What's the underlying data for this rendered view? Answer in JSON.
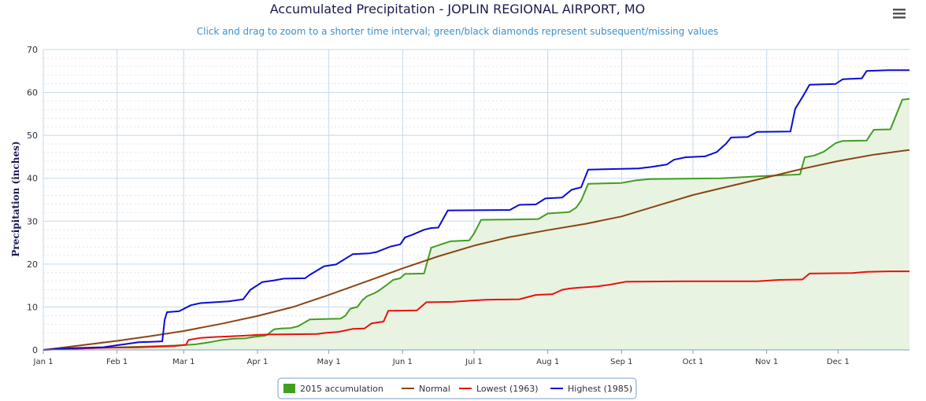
{
  "menu_icon": "hamburger-menu-icon",
  "chart_data": {
    "type": "line",
    "title": "Accumulated Precipitation - JOPLIN REGIONAL AIRPORT, MO",
    "subtitle": "Click and drag to zoom to a shorter time interval; green/black diamonds represent subsequent/missing values",
    "ylabel": "Precipitation (inches)",
    "xlabel": "",
    "ylim": [
      0,
      70
    ],
    "yticks": [
      0,
      10,
      20,
      30,
      40,
      50,
      60,
      70
    ],
    "x_domain_days": [
      0,
      364
    ],
    "xticks": [
      {
        "day": 0,
        "label": "Jan 1"
      },
      {
        "day": 31,
        "label": "Feb 1"
      },
      {
        "day": 59,
        "label": "Mar 1"
      },
      {
        "day": 90,
        "label": "Apr 1"
      },
      {
        "day": 120,
        "label": "May 1"
      },
      {
        "day": 151,
        "label": "Jun 1"
      },
      {
        "day": 181,
        "label": "Jul 1"
      },
      {
        "day": 212,
        "label": "Aug 1"
      },
      {
        "day": 243,
        "label": "Sep 1"
      },
      {
        "day": 273,
        "label": "Oct 1"
      },
      {
        "day": 304,
        "label": "Nov 1"
      },
      {
        "day": 334,
        "label": "Dec 1"
      }
    ],
    "grid": true,
    "legend_position": "bottom-center",
    "series": [
      {
        "name": "2015 accumulation",
        "color": "#3f9f1f",
        "fill": "#e8f3e2",
        "step": true,
        "points": [
          [
            0,
            0
          ],
          [
            12,
            0.3
          ],
          [
            25,
            0.5
          ],
          [
            31,
            0.6
          ],
          [
            44,
            0.8
          ],
          [
            55,
            1.0
          ],
          [
            58,
            1.1
          ],
          [
            61,
            1.2
          ],
          [
            64,
            1.3
          ],
          [
            70,
            1.8
          ],
          [
            75,
            2.3
          ],
          [
            80,
            2.6
          ],
          [
            85,
            2.7
          ],
          [
            88,
            3.0
          ],
          [
            93,
            3.3
          ],
          [
            94,
            3.5
          ],
          [
            97,
            4.8
          ],
          [
            100,
            5.0
          ],
          [
            104,
            5.1
          ],
          [
            107,
            5.5
          ],
          [
            112,
            7.1
          ],
          [
            118,
            7.2
          ],
          [
            125,
            7.3
          ],
          [
            127,
            8.0
          ],
          [
            129,
            9.6
          ],
          [
            132,
            10.0
          ],
          [
            134,
            11.5
          ],
          [
            136,
            12.5
          ],
          [
            139,
            13.2
          ],
          [
            141,
            13.8
          ],
          [
            144,
            15.0
          ],
          [
            147,
            16.3
          ],
          [
            150,
            16.7
          ],
          [
            152,
            17.7
          ],
          [
            160,
            17.8
          ],
          [
            163,
            23.8
          ],
          [
            171,
            25.3
          ],
          [
            179,
            25.5
          ],
          [
            181,
            27.1
          ],
          [
            184,
            30.3
          ],
          [
            198,
            30.4
          ],
          [
            208,
            30.5
          ],
          [
            212,
            31.8
          ],
          [
            221,
            32.1
          ],
          [
            224,
            33.2
          ],
          [
            226,
            34.8
          ],
          [
            229,
            38.7
          ],
          [
            243,
            38.9
          ],
          [
            249,
            39.5
          ],
          [
            255,
            39.8
          ],
          [
            270,
            39.9
          ],
          [
            285,
            40.0
          ],
          [
            302,
            40.5
          ],
          [
            318,
            40.9
          ],
          [
            320,
            44.9
          ],
          [
            324,
            45.3
          ],
          [
            328,
            46.2
          ],
          [
            333,
            48.2
          ],
          [
            336,
            48.7
          ],
          [
            346,
            48.8
          ],
          [
            349,
            51.3
          ],
          [
            356,
            51.4
          ],
          [
            361,
            58.3
          ],
          [
            364,
            58.5
          ]
        ]
      },
      {
        "name": "Normal",
        "color": "#8b4513",
        "step": false,
        "points": [
          [
            0,
            0
          ],
          [
            15,
            1.0
          ],
          [
            31,
            2.1
          ],
          [
            45,
            3.2
          ],
          [
            59,
            4.4
          ],
          [
            75,
            6.1
          ],
          [
            90,
            7.9
          ],
          [
            105,
            10.0
          ],
          [
            120,
            12.8
          ],
          [
            135,
            15.8
          ],
          [
            151,
            19.0
          ],
          [
            166,
            21.8
          ],
          [
            181,
            24.3
          ],
          [
            196,
            26.3
          ],
          [
            212,
            27.9
          ],
          [
            228,
            29.4
          ],
          [
            243,
            31.1
          ],
          [
            258,
            33.6
          ],
          [
            273,
            36.1
          ],
          [
            288,
            38.1
          ],
          [
            304,
            40.2
          ],
          [
            319,
            42.2
          ],
          [
            334,
            44.0
          ],
          [
            349,
            45.5
          ],
          [
            364,
            46.6
          ]
        ]
      },
      {
        "name": "Lowest (1963)",
        "color": "#e8110e",
        "step": true,
        "points": [
          [
            0,
            0
          ],
          [
            10,
            0.2
          ],
          [
            25,
            0.5
          ],
          [
            40,
            0.6
          ],
          [
            55,
            0.9
          ],
          [
            60,
            1.2
          ],
          [
            61,
            2.3
          ],
          [
            66,
            2.8
          ],
          [
            72,
            3.0
          ],
          [
            84,
            3.3
          ],
          [
            90,
            3.5
          ],
          [
            95,
            3.6
          ],
          [
            115,
            3.7
          ],
          [
            119,
            4.0
          ],
          [
            124,
            4.2
          ],
          [
            130,
            4.9
          ],
          [
            135,
            5.0
          ],
          [
            138,
            6.2
          ],
          [
            143,
            6.6
          ],
          [
            145,
            9.1
          ],
          [
            157,
            9.2
          ],
          [
            161,
            11.1
          ],
          [
            172,
            11.2
          ],
          [
            180,
            11.5
          ],
          [
            186,
            11.7
          ],
          [
            200,
            11.8
          ],
          [
            207,
            12.8
          ],
          [
            214,
            13.0
          ],
          [
            218,
            14.0
          ],
          [
            221,
            14.3
          ],
          [
            225,
            14.5
          ],
          [
            233,
            14.8
          ],
          [
            238,
            15.2
          ],
          [
            242,
            15.6
          ],
          [
            245,
            15.9
          ],
          [
            270,
            16.0
          ],
          [
            300,
            16.0
          ],
          [
            309,
            16.3
          ],
          [
            319,
            16.4
          ],
          [
            322,
            17.8
          ],
          [
            340,
            17.9
          ],
          [
            346,
            18.2
          ],
          [
            355,
            18.3
          ],
          [
            364,
            18.3
          ]
        ]
      },
      {
        "name": "Highest (1985)",
        "color": "#0b0bd6",
        "step": true,
        "points": [
          [
            0,
            0
          ],
          [
            12,
            0.4
          ],
          [
            25,
            0.6
          ],
          [
            30,
            1.0
          ],
          [
            34,
            1.3
          ],
          [
            40,
            1.8
          ],
          [
            46,
            1.9
          ],
          [
            50,
            2.0
          ],
          [
            51,
            7.0
          ],
          [
            52,
            8.8
          ],
          [
            57,
            9.0
          ],
          [
            62,
            10.4
          ],
          [
            66,
            10.9
          ],
          [
            72,
            11.1
          ],
          [
            78,
            11.3
          ],
          [
            84,
            11.8
          ],
          [
            87,
            14.0
          ],
          [
            92,
            15.8
          ],
          [
            97,
            16.2
          ],
          [
            101,
            16.6
          ],
          [
            110,
            16.7
          ],
          [
            112,
            17.5
          ],
          [
            118,
            19.5
          ],
          [
            123,
            19.9
          ],
          [
            130,
            22.3
          ],
          [
            137,
            22.5
          ],
          [
            140,
            22.8
          ],
          [
            146,
            24.1
          ],
          [
            150,
            24.6
          ],
          [
            152,
            26.2
          ],
          [
            155,
            26.8
          ],
          [
            160,
            28.0
          ],
          [
            163,
            28.4
          ],
          [
            166,
            28.5
          ],
          [
            170,
            32.5
          ],
          [
            196,
            32.6
          ],
          [
            200,
            33.8
          ],
          [
            207,
            33.9
          ],
          [
            211,
            35.3
          ],
          [
            218,
            35.5
          ],
          [
            222,
            37.3
          ],
          [
            226,
            37.9
          ],
          [
            229,
            42.0
          ],
          [
            250,
            42.3
          ],
          [
            255,
            42.6
          ],
          [
            262,
            43.2
          ],
          [
            265,
            44.3
          ],
          [
            270,
            44.9
          ],
          [
            278,
            45.1
          ],
          [
            283,
            46.1
          ],
          [
            287,
            48.1
          ],
          [
            289,
            49.5
          ],
          [
            296,
            49.6
          ],
          [
            300,
            50.8
          ],
          [
            314,
            50.9
          ],
          [
            316,
            56.2
          ],
          [
            319,
            58.9
          ],
          [
            322,
            61.8
          ],
          [
            333,
            62.0
          ],
          [
            336,
            63.1
          ],
          [
            344,
            63.3
          ],
          [
            346,
            65.0
          ],
          [
            355,
            65.2
          ],
          [
            364,
            65.2
          ]
        ]
      }
    ]
  }
}
